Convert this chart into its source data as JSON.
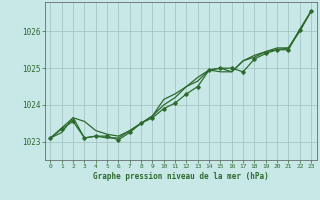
{
  "title": "Graphe pression niveau de la mer (hPa)",
  "bg_color": "#c8e8e8",
  "grid_color": "#9fbfbf",
  "line_color": "#2d6a2d",
  "marker_color": "#2d6a2d",
  "xlim": [
    -0.5,
    23.5
  ],
  "ylim": [
    1022.5,
    1026.8
  ],
  "yticks": [
    1023,
    1024,
    1025,
    1026
  ],
  "xticks": [
    0,
    1,
    2,
    3,
    4,
    5,
    6,
    7,
    8,
    9,
    10,
    11,
    12,
    13,
    14,
    15,
    16,
    17,
    18,
    19,
    20,
    21,
    22,
    23
  ],
  "series1_x": [
    0,
    1,
    2,
    3,
    4,
    5,
    6,
    7,
    8,
    9,
    10,
    11,
    12,
    13,
    14,
    15,
    16,
    17,
    18,
    19,
    20,
    21,
    22,
    23
  ],
  "series1_y": [
    1023.1,
    1023.35,
    1023.55,
    1023.1,
    1023.15,
    1023.15,
    1023.05,
    1023.25,
    1023.5,
    1023.65,
    1023.9,
    1024.05,
    1024.3,
    1024.5,
    1024.95,
    1025.0,
    1025.0,
    1024.9,
    1025.25,
    1025.4,
    1025.5,
    1025.5,
    1026.05,
    1026.55
  ],
  "series2_x": [
    0,
    1,
    2,
    3,
    4,
    5,
    6,
    7,
    8,
    9,
    10,
    11,
    12,
    13,
    14,
    15,
    16,
    17,
    18,
    19,
    20,
    21,
    22,
    23
  ],
  "series2_y": [
    1023.1,
    1023.25,
    1023.65,
    1023.55,
    1023.3,
    1023.2,
    1023.15,
    1023.3,
    1023.5,
    1023.7,
    1024.0,
    1024.2,
    1024.5,
    1024.65,
    1024.95,
    1025.0,
    1024.9,
    1025.2,
    1025.3,
    1025.45,
    1025.5,
    1025.55,
    1026.0,
    1026.55
  ],
  "series3_x": [
    0,
    2,
    3,
    4,
    5,
    6,
    7,
    8,
    9,
    10,
    11,
    12,
    13,
    14,
    15,
    16,
    17,
    18,
    19,
    20,
    21,
    22,
    23
  ],
  "series3_y": [
    1023.1,
    1023.65,
    1023.1,
    1023.15,
    1023.1,
    1023.1,
    1023.3,
    1023.5,
    1023.7,
    1024.15,
    1024.3,
    1024.5,
    1024.75,
    1024.95,
    1024.9,
    1024.9,
    1025.2,
    1025.35,
    1025.45,
    1025.55,
    1025.55,
    1026.05,
    1026.55
  ]
}
